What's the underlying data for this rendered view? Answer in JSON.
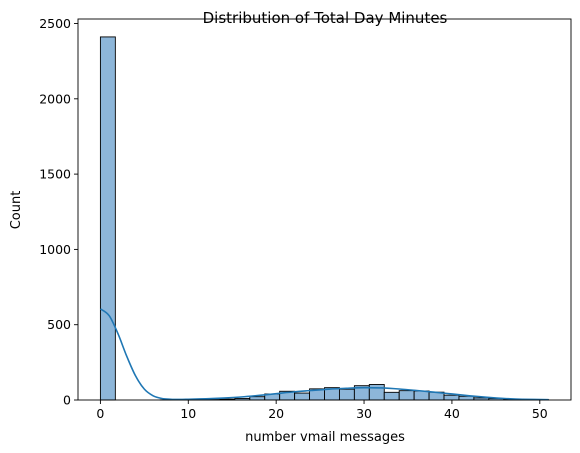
{
  "chart_data": {
    "type": "bar",
    "title": "Distribution of Total Day Minutes",
    "xlabel": "number vmail messages",
    "ylabel": "Count",
    "xlim": [
      -2.55,
      53.55
    ],
    "ylim": [
      0,
      2530
    ],
    "xticks": [
      0,
      10,
      20,
      30,
      40,
      50
    ],
    "yticks": [
      0,
      500,
      1000,
      1500,
      2000,
      2500
    ],
    "grid": false,
    "bin_edges": [
      0,
      1.7,
      3.4,
      5.1,
      6.8,
      8.5,
      10.2,
      11.9,
      13.6,
      15.3,
      17.0,
      18.7,
      20.4,
      22.1,
      23.8,
      25.5,
      27.2,
      28.9,
      30.6,
      32.3,
      34.0,
      35.7,
      37.4,
      39.1,
      40.8,
      42.5,
      44.2,
      45.9,
      47.6,
      49.3,
      51.0
    ],
    "counts": [
      2411,
      0,
      0,
      0,
      1,
      2,
      2,
      3,
      6,
      10,
      22,
      40,
      58,
      46,
      74,
      82,
      72,
      95,
      103,
      51,
      62,
      60,
      52,
      32,
      25,
      14,
      10,
      5,
      2,
      2
    ],
    "kde": {
      "x": [
        0,
        1,
        2,
        3,
        4,
        5,
        6,
        7,
        8,
        9,
        10,
        12,
        14,
        16,
        18,
        20,
        22,
        24,
        26,
        28,
        30,
        32,
        34,
        36,
        38,
        40,
        42,
        44,
        46,
        48,
        51
      ],
      "y": [
        605,
        560,
        440,
        290,
        160,
        72,
        28,
        10,
        5,
        4,
        5,
        8,
        13,
        20,
        30,
        42,
        54,
        63,
        72,
        78,
        82,
        80,
        73,
        63,
        52,
        40,
        28,
        18,
        10,
        5,
        2
      ]
    },
    "colors": {
      "bar_fill": "#8db6d9",
      "bar_edge": "#000000",
      "kde_line": "#1f77b4"
    }
  }
}
